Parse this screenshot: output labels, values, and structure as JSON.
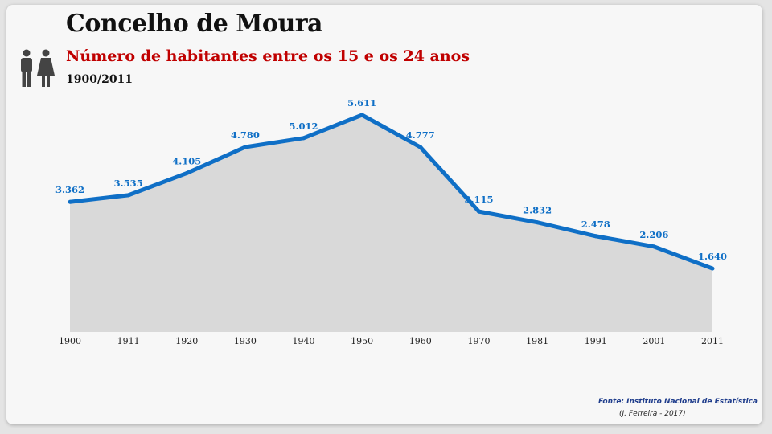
{
  "header": {
    "title": "Concelho de Moura",
    "subtitle": "Número de habitantes entre os 15 e os 24 anos",
    "period": "1900/2011",
    "icon": "man-woman-icon"
  },
  "footer": {
    "source": "Fonte: Instituto Nacional de Estatística",
    "author": "(J. Ferreira - 2017)"
  },
  "colors": {
    "line": "#0f6fc6",
    "area": "#d9d9d9",
    "label": "#0f6fc6",
    "subtitle": "#c00000"
  },
  "chart_data": {
    "type": "area",
    "title": "Número de habitantes entre os 15 e os 24 anos",
    "categories": [
      "1900",
      "1911",
      "1920",
      "1930",
      "1940",
      "1950",
      "1960",
      "1970",
      "1981",
      "1991",
      "2001",
      "2011"
    ],
    "x": [
      1900,
      1911,
      1920,
      1930,
      1940,
      1950,
      1960,
      1970,
      1981,
      1991,
      2001,
      2011
    ],
    "values": [
      3362,
      3535,
      4105,
      4780,
      5012,
      5611,
      4777,
      3115,
      2832,
      2478,
      2206,
      1640
    ],
    "value_labels": [
      "3.362",
      "3.535",
      "4.105",
      "4.780",
      "5.012",
      "5.611",
      "4.777",
      "3.115",
      "2.832",
      "2.478",
      "2.206",
      "1.640"
    ],
    "ylim": [
      0,
      6000
    ],
    "grid": false,
    "legend": "none"
  }
}
